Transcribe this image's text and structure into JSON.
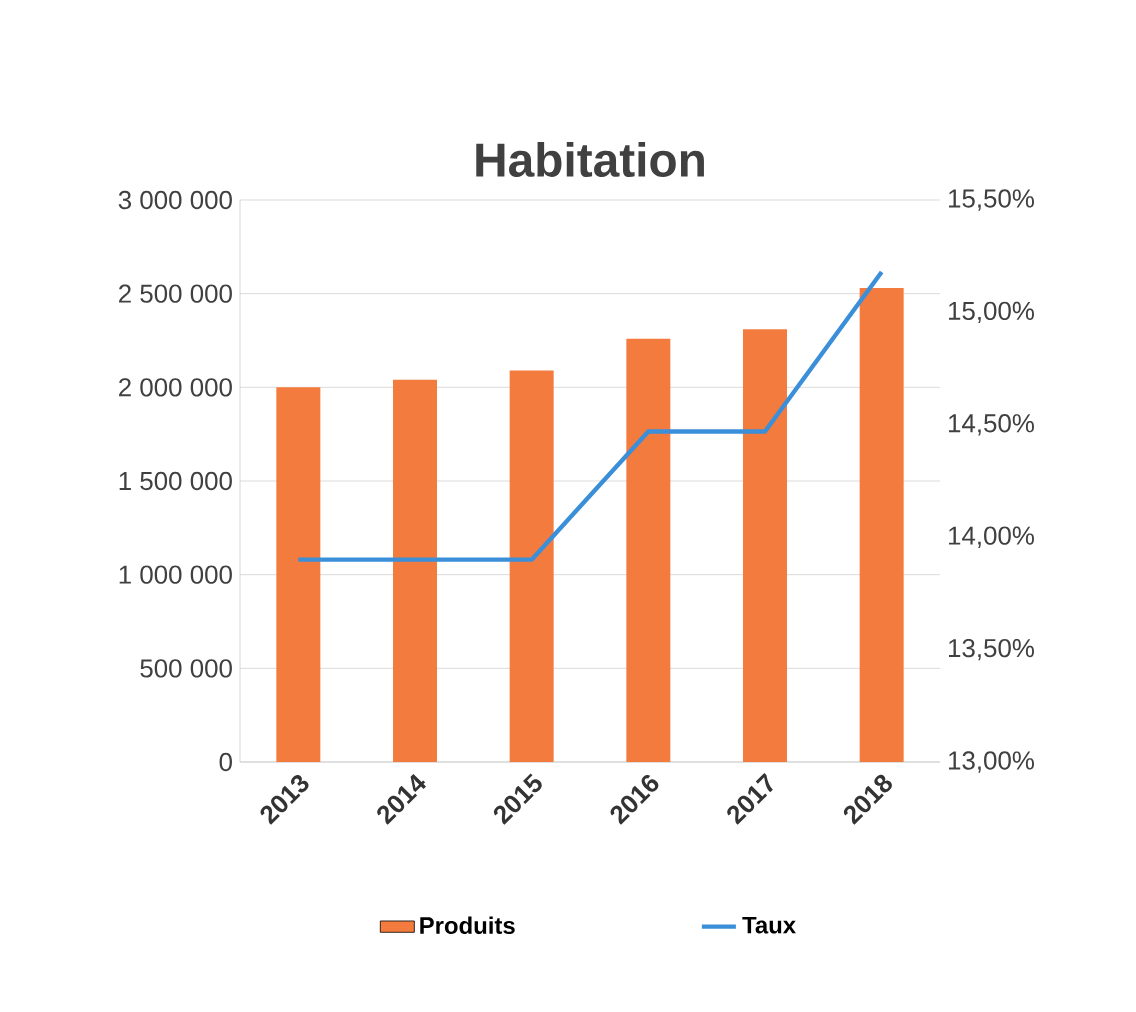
{
  "chart_data": {
    "type": "bar",
    "title": "Habitation",
    "categories": [
      "2013",
      "2014",
      "2015",
      "2016",
      "2017",
      "2018"
    ],
    "series": [
      {
        "name": "Produits",
        "color": "#f47b3e",
        "values": [
          2000000,
          2040000,
          2090000,
          2260000,
          2310000,
          2530000
        ]
      },
      {
        "name": "Taux",
        "type": "line",
        "axis": "y2",
        "color": "#3b8fd9",
        "values": [
          13.9,
          13.9,
          13.9,
          14.47,
          14.47,
          15.18
        ]
      }
    ],
    "ylim": [
      0,
      3000000
    ],
    "yticks": [
      {
        "value": 0,
        "label": "0"
      },
      {
        "value": 500000,
        "label": "500 000"
      },
      {
        "value": 1000000,
        "label": "1 000 000"
      },
      {
        "value": 1500000,
        "label": "1 500 000"
      },
      {
        "value": 2000000,
        "label": "2 000 000"
      },
      {
        "value": 2500000,
        "label": "2 500 000"
      },
      {
        "value": 3000000,
        "label": "3 000 000"
      }
    ],
    "y2lim": [
      13,
      15.5
    ],
    "y2ticks": [
      {
        "value": 13,
        "label": "13,00%"
      },
      {
        "value": 13.5,
        "label": "13,50%"
      },
      {
        "value": 14,
        "label": "14,00%"
      },
      {
        "value": 14.5,
        "label": "14,50%"
      },
      {
        "value": 15,
        "label": "15,00%"
      },
      {
        "value": 15.5,
        "label": "15,50%"
      }
    ],
    "grid": "y",
    "legend": "bottom"
  }
}
